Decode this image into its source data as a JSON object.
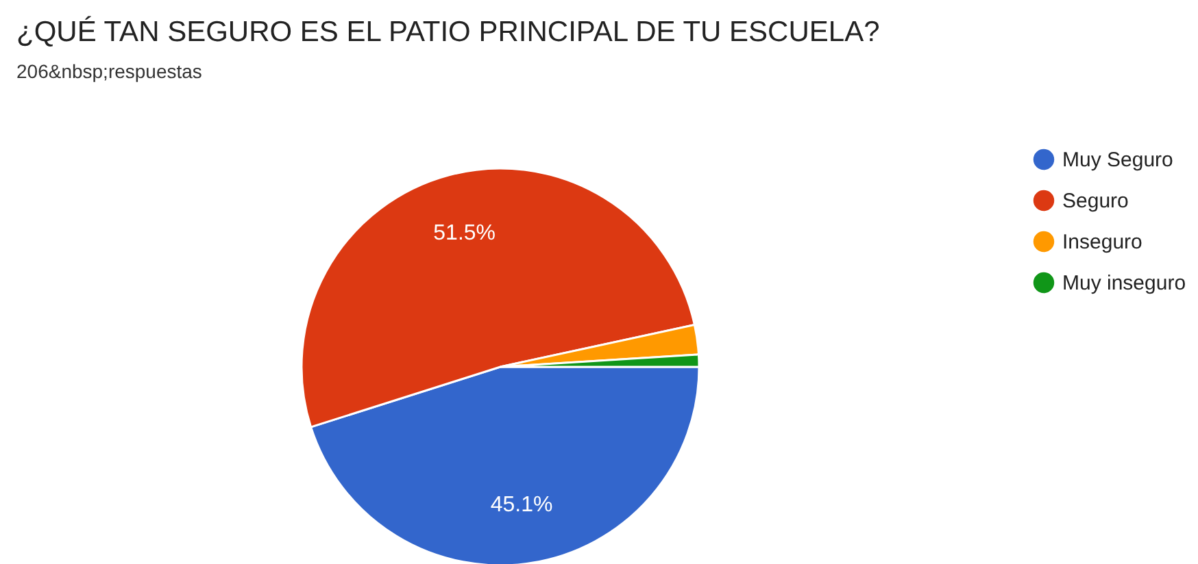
{
  "chart_data": {
    "type": "pie",
    "title": "¿QUÉ TAN SEGURO ES EL PATIO PRINCIPAL DE TU ESCUELA?",
    "subtitle": "206&nbsp;respuestas",
    "categories": [
      "Muy Seguro",
      "Seguro",
      "Inseguro",
      "Muy inseguro"
    ],
    "values": [
      45.1,
      51.5,
      2.4,
      1.0
    ],
    "colors": [
      "#3366cc",
      "#dc3912",
      "#ff9900",
      "#109618"
    ],
    "value_labels": [
      "45.1%",
      "51.5%",
      null,
      null
    ],
    "legend": "top right"
  }
}
